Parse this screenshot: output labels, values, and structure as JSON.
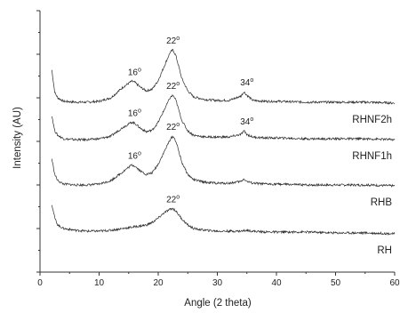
{
  "chart_data": {
    "type": "line",
    "xlabel": "Angle (2 theta)",
    "ylabel": "Intensity (AU)",
    "xlim": [
      0,
      60
    ],
    "x_ticks": [
      "0",
      "10",
      "20",
      "30",
      "40",
      "50",
      "60"
    ],
    "y_tick_labels_shown": false,
    "grid": false,
    "series": [
      {
        "name": "RHNF2h",
        "x": [
          2,
          2.5,
          3,
          4,
          6,
          8,
          10,
          12,
          14,
          15.5,
          16,
          17,
          18,
          19,
          20,
          21,
          22,
          22.5,
          23,
          24,
          25,
          26,
          28,
          30,
          32,
          34,
          34.5,
          35,
          36,
          38,
          40,
          45,
          50,
          55,
          60
        ],
        "y": [
          232,
          206,
          200,
          196,
          195,
          195,
          196,
          200,
          212,
          219,
          218,
          212,
          208,
          210,
          220,
          236,
          252,
          255,
          248,
          222,
          208,
          201,
          198,
          197,
          197,
          202,
          207,
          203,
          197,
          196,
          196,
          195,
          195,
          195,
          194
        ]
      },
      {
        "name": "RHNF1h",
        "x": [
          2,
          2.5,
          3,
          4,
          6,
          8,
          10,
          12,
          14,
          15.5,
          16,
          17,
          18,
          19,
          20,
          21,
          22,
          22.5,
          23,
          24,
          25,
          26,
          28,
          30,
          32,
          34,
          34.5,
          35,
          36,
          38,
          40,
          45,
          50,
          55,
          60
        ],
        "y": [
          180,
          162,
          157,
          153,
          152,
          152,
          153,
          156,
          166,
          172,
          171,
          165,
          161,
          163,
          172,
          186,
          200,
          203,
          197,
          174,
          162,
          157,
          155,
          155,
          155,
          158,
          162,
          158,
          155,
          154,
          154,
          153,
          153,
          153,
          152
        ]
      },
      {
        "name": "RHB",
        "x": [
          2,
          2.5,
          3,
          4,
          6,
          8,
          10,
          12,
          14,
          15.5,
          16,
          17,
          18,
          19,
          20,
          21,
          22,
          22.5,
          23,
          24,
          25,
          26,
          28,
          30,
          32,
          34,
          34.5,
          35,
          36,
          38,
          40,
          45,
          50,
          55,
          60
        ],
        "y": [
          130,
          112,
          105,
          101,
          100,
          100,
          101,
          105,
          115,
          123,
          122,
          116,
          112,
          114,
          124,
          138,
          152,
          156,
          150,
          126,
          112,
          106,
          103,
          102,
          102,
          104,
          107,
          104,
          102,
          101,
          101,
          100,
          100,
          100,
          99
        ]
      },
      {
        "name": "RH",
        "x": [
          2,
          2.5,
          3,
          4,
          6,
          8,
          10,
          12,
          14,
          16,
          18,
          19,
          20,
          21,
          22,
          22.5,
          23,
          24,
          25,
          26,
          28,
          30,
          32,
          34,
          35,
          36,
          38,
          40,
          45,
          50,
          55,
          60
        ],
        "y": [
          78,
          62,
          54,
          50,
          48,
          47,
          47,
          48,
          50,
          52,
          54,
          57,
          62,
          68,
          72,
          73,
          70,
          61,
          54,
          50,
          48,
          47,
          47,
          47,
          48,
          47,
          46,
          46,
          46,
          45,
          45,
          44
        ]
      }
    ],
    "annotations": [
      {
        "text": "16",
        "unit": "o",
        "x": 16,
        "y": 219
      },
      {
        "text": "22",
        "unit": "o",
        "x": 22.5,
        "y": 255
      },
      {
        "text": "34",
        "unit": "o",
        "x": 35,
        "y": 207
      },
      {
        "text": "22",
        "unit": "o",
        "x": 22.5,
        "y": 203
      },
      {
        "text": "16",
        "unit": "o",
        "x": 16,
        "y": 172
      },
      {
        "text": "34",
        "unit": "o",
        "x": 35,
        "y": 162
      },
      {
        "text": "22",
        "unit": "o",
        "x": 22.5,
        "y": 156
      },
      {
        "text": "16",
        "unit": "o",
        "x": 16,
        "y": 123
      },
      {
        "text": "22",
        "unit": "o",
        "x": 22.5,
        "y": 73
      }
    ]
  }
}
